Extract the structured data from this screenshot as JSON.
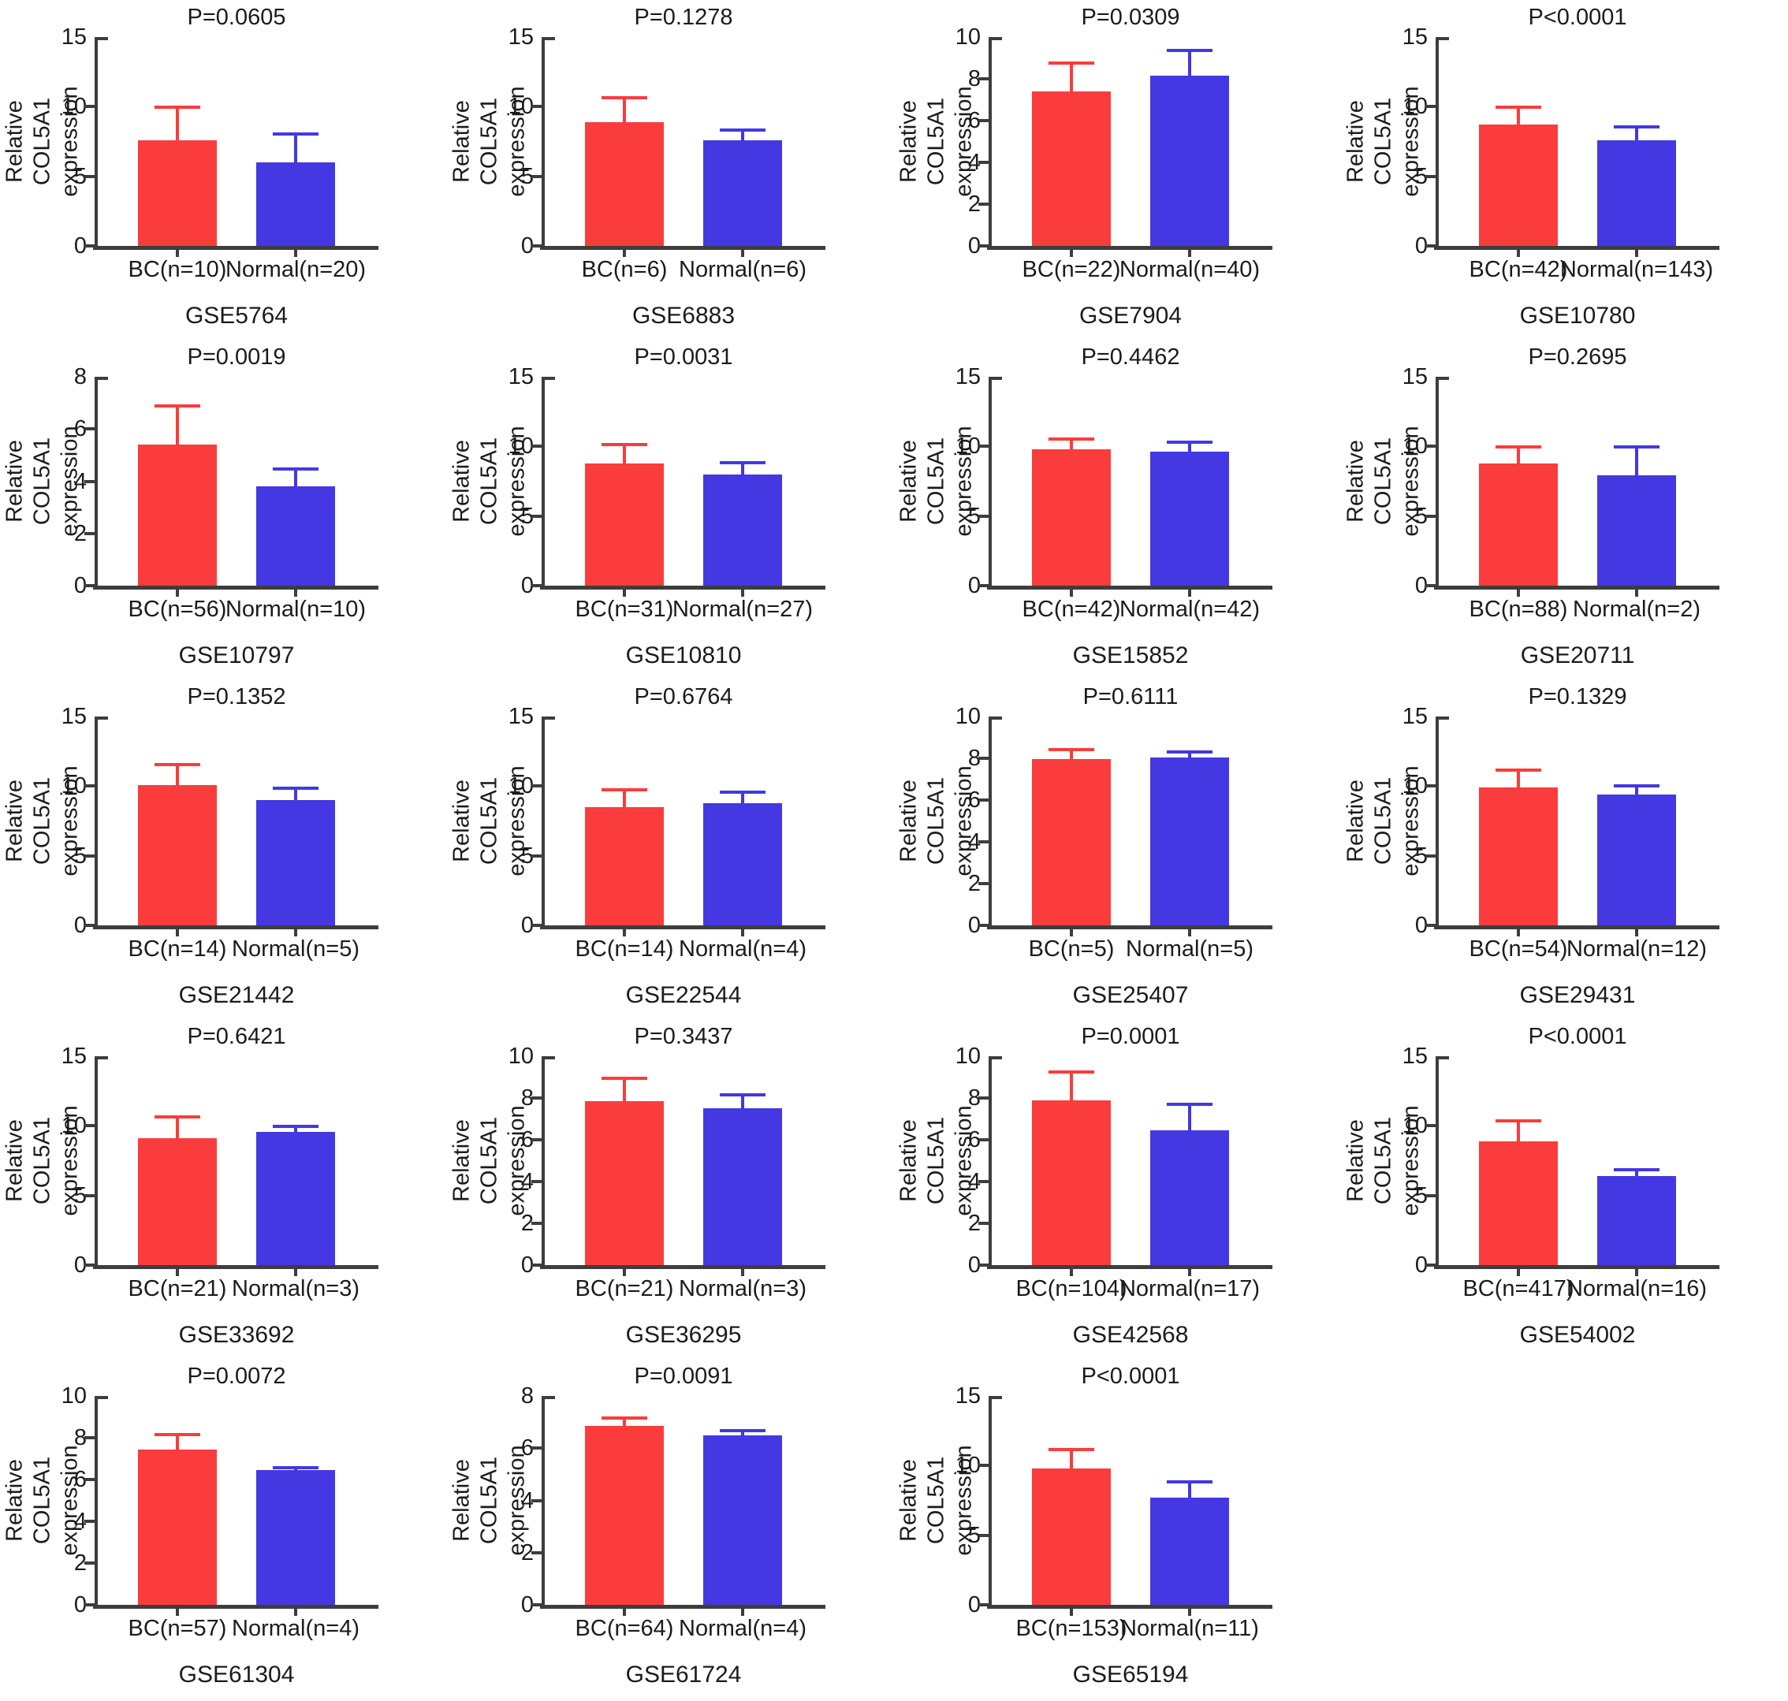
{
  "figure": {
    "ylabel": "Relative COL5A1\nexpression",
    "series_labels": [
      "BC",
      "Normal"
    ],
    "colors": {
      "bc_bar": "#fb3c3c",
      "normal_bar": "#4338e2",
      "axis": "#3d3d3d",
      "text": "#1b1b1b"
    }
  },
  "chart_data": [
    {
      "type": "bar",
      "dataset": "GSE5764",
      "p_label": "P=0.0605",
      "ylabel": "Relative COL5A1 expression",
      "ylim": [
        0,
        15
      ],
      "yticks": [
        0,
        5,
        10,
        15
      ],
      "categories": [
        "BC(n=10)",
        "Normal(n=20)"
      ],
      "values": [
        7.6,
        6.0
      ],
      "error_tops": [
        10.0,
        8.1
      ]
    },
    {
      "type": "bar",
      "dataset": "GSE6883",
      "p_label": "P=0.1278",
      "ylabel": "Relative COL5A1 expression",
      "ylim": [
        0,
        15
      ],
      "yticks": [
        0,
        5,
        10,
        15
      ],
      "categories": [
        "BC(n=6)",
        "Normal(n=6)"
      ],
      "values": [
        8.9,
        7.6
      ],
      "error_tops": [
        10.7,
        8.4
      ]
    },
    {
      "type": "bar",
      "dataset": "GSE7904",
      "p_label": "P=0.0309",
      "ylabel": "Relative COL5A1 expression",
      "ylim": [
        0,
        10
      ],
      "yticks": [
        0,
        2,
        4,
        6,
        8,
        10
      ],
      "categories": [
        "BC(n=22)",
        "Normal(n=40)"
      ],
      "values": [
        7.4,
        8.15
      ],
      "error_tops": [
        8.8,
        9.4
      ]
    },
    {
      "type": "bar",
      "dataset": "GSE10780",
      "p_label": "P<0.0001",
      "ylabel": "Relative COL5A1 expression",
      "ylim": [
        0,
        15
      ],
      "yticks": [
        0,
        5,
        10,
        15
      ],
      "categories": [
        "BC(n=42)",
        "Normal(n=143)"
      ],
      "values": [
        8.7,
        7.6
      ],
      "error_tops": [
        10.0,
        8.6
      ]
    },
    {
      "type": "bar",
      "dataset": "GSE10797",
      "p_label": "P=0.0019",
      "ylabel": "Relative COL5A1 expression",
      "ylim": [
        0,
        8
      ],
      "yticks": [
        0,
        2,
        4,
        6,
        8
      ],
      "categories": [
        "BC(n=56)",
        "Normal(n=10)"
      ],
      "values": [
        5.4,
        3.8
      ],
      "error_tops": [
        6.9,
        4.5
      ]
    },
    {
      "type": "bar",
      "dataset": "GSE10810",
      "p_label": "P=0.0031",
      "ylabel": "Relative COL5A1 expression",
      "ylim": [
        0,
        15
      ],
      "yticks": [
        0,
        5,
        10,
        15
      ],
      "categories": [
        "BC(n=31)",
        "Normal(n=27)"
      ],
      "values": [
        8.8,
        8.0
      ],
      "error_tops": [
        10.2,
        8.9
      ]
    },
    {
      "type": "bar",
      "dataset": "GSE15852",
      "p_label": "P=0.4462",
      "ylabel": "Relative COL5A1 expression",
      "ylim": [
        0,
        15
      ],
      "yticks": [
        0,
        5,
        10,
        15
      ],
      "categories": [
        "BC(n=42)",
        "Normal(n=42)"
      ],
      "values": [
        9.8,
        9.65
      ],
      "error_tops": [
        10.6,
        10.35
      ]
    },
    {
      "type": "bar",
      "dataset": "GSE20711",
      "p_label": "P=0.2695",
      "ylabel": "Relative COL5A1 expression",
      "ylim": [
        0,
        15
      ],
      "yticks": [
        0,
        5,
        10,
        15
      ],
      "categories": [
        "BC(n=88)",
        "Normal(n=2)"
      ],
      "values": [
        8.8,
        7.9
      ],
      "error_tops": [
        10.0,
        10.0
      ]
    },
    {
      "type": "bar",
      "dataset": "GSE21442",
      "p_label": "P=0.1352",
      "ylabel": "Relative COL5A1 expression",
      "ylim": [
        0,
        15
      ],
      "yticks": [
        0,
        5,
        10,
        15
      ],
      "categories": [
        "BC(n=14)",
        "Normal(n=5)"
      ],
      "values": [
        10.1,
        9.0
      ],
      "error_tops": [
        11.6,
        9.9
      ]
    },
    {
      "type": "bar",
      "dataset": "GSE22544",
      "p_label": "P=0.6764",
      "ylabel": "Relative COL5A1 expression",
      "ylim": [
        0,
        15
      ],
      "yticks": [
        0,
        5,
        10,
        15
      ],
      "categories": [
        "BC(n=14)",
        "Normal(n=4)"
      ],
      "values": [
        8.5,
        8.75
      ],
      "error_tops": [
        9.8,
        9.6
      ]
    },
    {
      "type": "bar",
      "dataset": "GSE25407",
      "p_label": "P=0.6111",
      "ylabel": "Relative COL5A1 expression",
      "ylim": [
        0,
        10
      ],
      "yticks": [
        0,
        2,
        4,
        6,
        8,
        10
      ],
      "categories": [
        "BC(n=5)",
        "Normal(n=5)"
      ],
      "values": [
        7.95,
        8.05
      ],
      "error_tops": [
        8.45,
        8.35
      ]
    },
    {
      "type": "bar",
      "dataset": "GSE29431",
      "p_label": "P=0.1329",
      "ylabel": "Relative COL5A1 expression",
      "ylim": [
        0,
        15
      ],
      "yticks": [
        0,
        5,
        10,
        15
      ],
      "categories": [
        "BC(n=54)",
        "Normal(n=12)"
      ],
      "values": [
        9.9,
        9.4
      ],
      "error_tops": [
        11.2,
        10.1
      ]
    },
    {
      "type": "bar",
      "dataset": "GSE33692",
      "p_label": "P=0.6421",
      "ylabel": "Relative COL5A1 expression",
      "ylim": [
        0,
        15
      ],
      "yticks": [
        0,
        5,
        10,
        15
      ],
      "categories": [
        "BC(n=21)",
        "Normal(n=3)"
      ],
      "values": [
        9.1,
        9.55
      ],
      "error_tops": [
        10.7,
        10.0
      ]
    },
    {
      "type": "bar",
      "dataset": "GSE36295",
      "p_label": "P=0.3437",
      "ylabel": "Relative COL5A1 expression",
      "ylim": [
        0,
        10
      ],
      "yticks": [
        0,
        2,
        4,
        6,
        8,
        10
      ],
      "categories": [
        "BC(n=21)",
        "Normal(n=3)"
      ],
      "values": [
        7.85,
        7.5
      ],
      "error_tops": [
        9.0,
        8.2
      ]
    },
    {
      "type": "bar",
      "dataset": "GSE42568",
      "p_label": "P=0.0001",
      "ylabel": "Relative COL5A1 expression",
      "ylim": [
        0,
        10
      ],
      "yticks": [
        0,
        2,
        4,
        6,
        8,
        10
      ],
      "categories": [
        "BC(n=104)",
        "Normal(n=17)"
      ],
      "values": [
        7.9,
        6.45
      ],
      "error_tops": [
        9.3,
        7.75
      ]
    },
    {
      "type": "bar",
      "dataset": "GSE54002",
      "p_label": "P<0.0001",
      "ylabel": "Relative COL5A1 expression",
      "ylim": [
        0,
        15
      ],
      "yticks": [
        0,
        5,
        10,
        15
      ],
      "categories": [
        "BC(n=417)",
        "Normal(n=16)"
      ],
      "values": [
        8.9,
        6.4
      ],
      "error_tops": [
        10.4,
        6.9
      ]
    },
    {
      "type": "bar",
      "dataset": "GSE61304",
      "p_label": "P=0.0072",
      "ylabel": "Relative COL5A1 expression",
      "ylim": [
        0,
        10
      ],
      "yticks": [
        0,
        2,
        4,
        6,
        8,
        10
      ],
      "categories": [
        "BC(n=57)",
        "Normal(n=4)"
      ],
      "values": [
        7.45,
        6.45
      ],
      "error_tops": [
        8.2,
        6.6
      ]
    },
    {
      "type": "bar",
      "dataset": "GSE61724",
      "p_label": "P=0.0091",
      "ylabel": "Relative COL5A1 expression",
      "ylim": [
        0,
        8
      ],
      "yticks": [
        0,
        2,
        4,
        6,
        8
      ],
      "categories": [
        "BC(n=64)",
        "Normal(n=4)"
      ],
      "values": [
        6.85,
        6.5
      ],
      "error_tops": [
        7.2,
        6.7
      ]
    },
    {
      "type": "bar",
      "dataset": "GSE65194",
      "p_label": "P<0.0001",
      "ylabel": "Relative COL5A1 expression",
      "ylim": [
        0,
        15
      ],
      "yticks": [
        0,
        5,
        10,
        15
      ],
      "categories": [
        "BC(n=153)",
        "Normal(n=11)"
      ],
      "values": [
        9.8,
        7.7
      ],
      "error_tops": [
        11.2,
        8.9
      ]
    }
  ]
}
